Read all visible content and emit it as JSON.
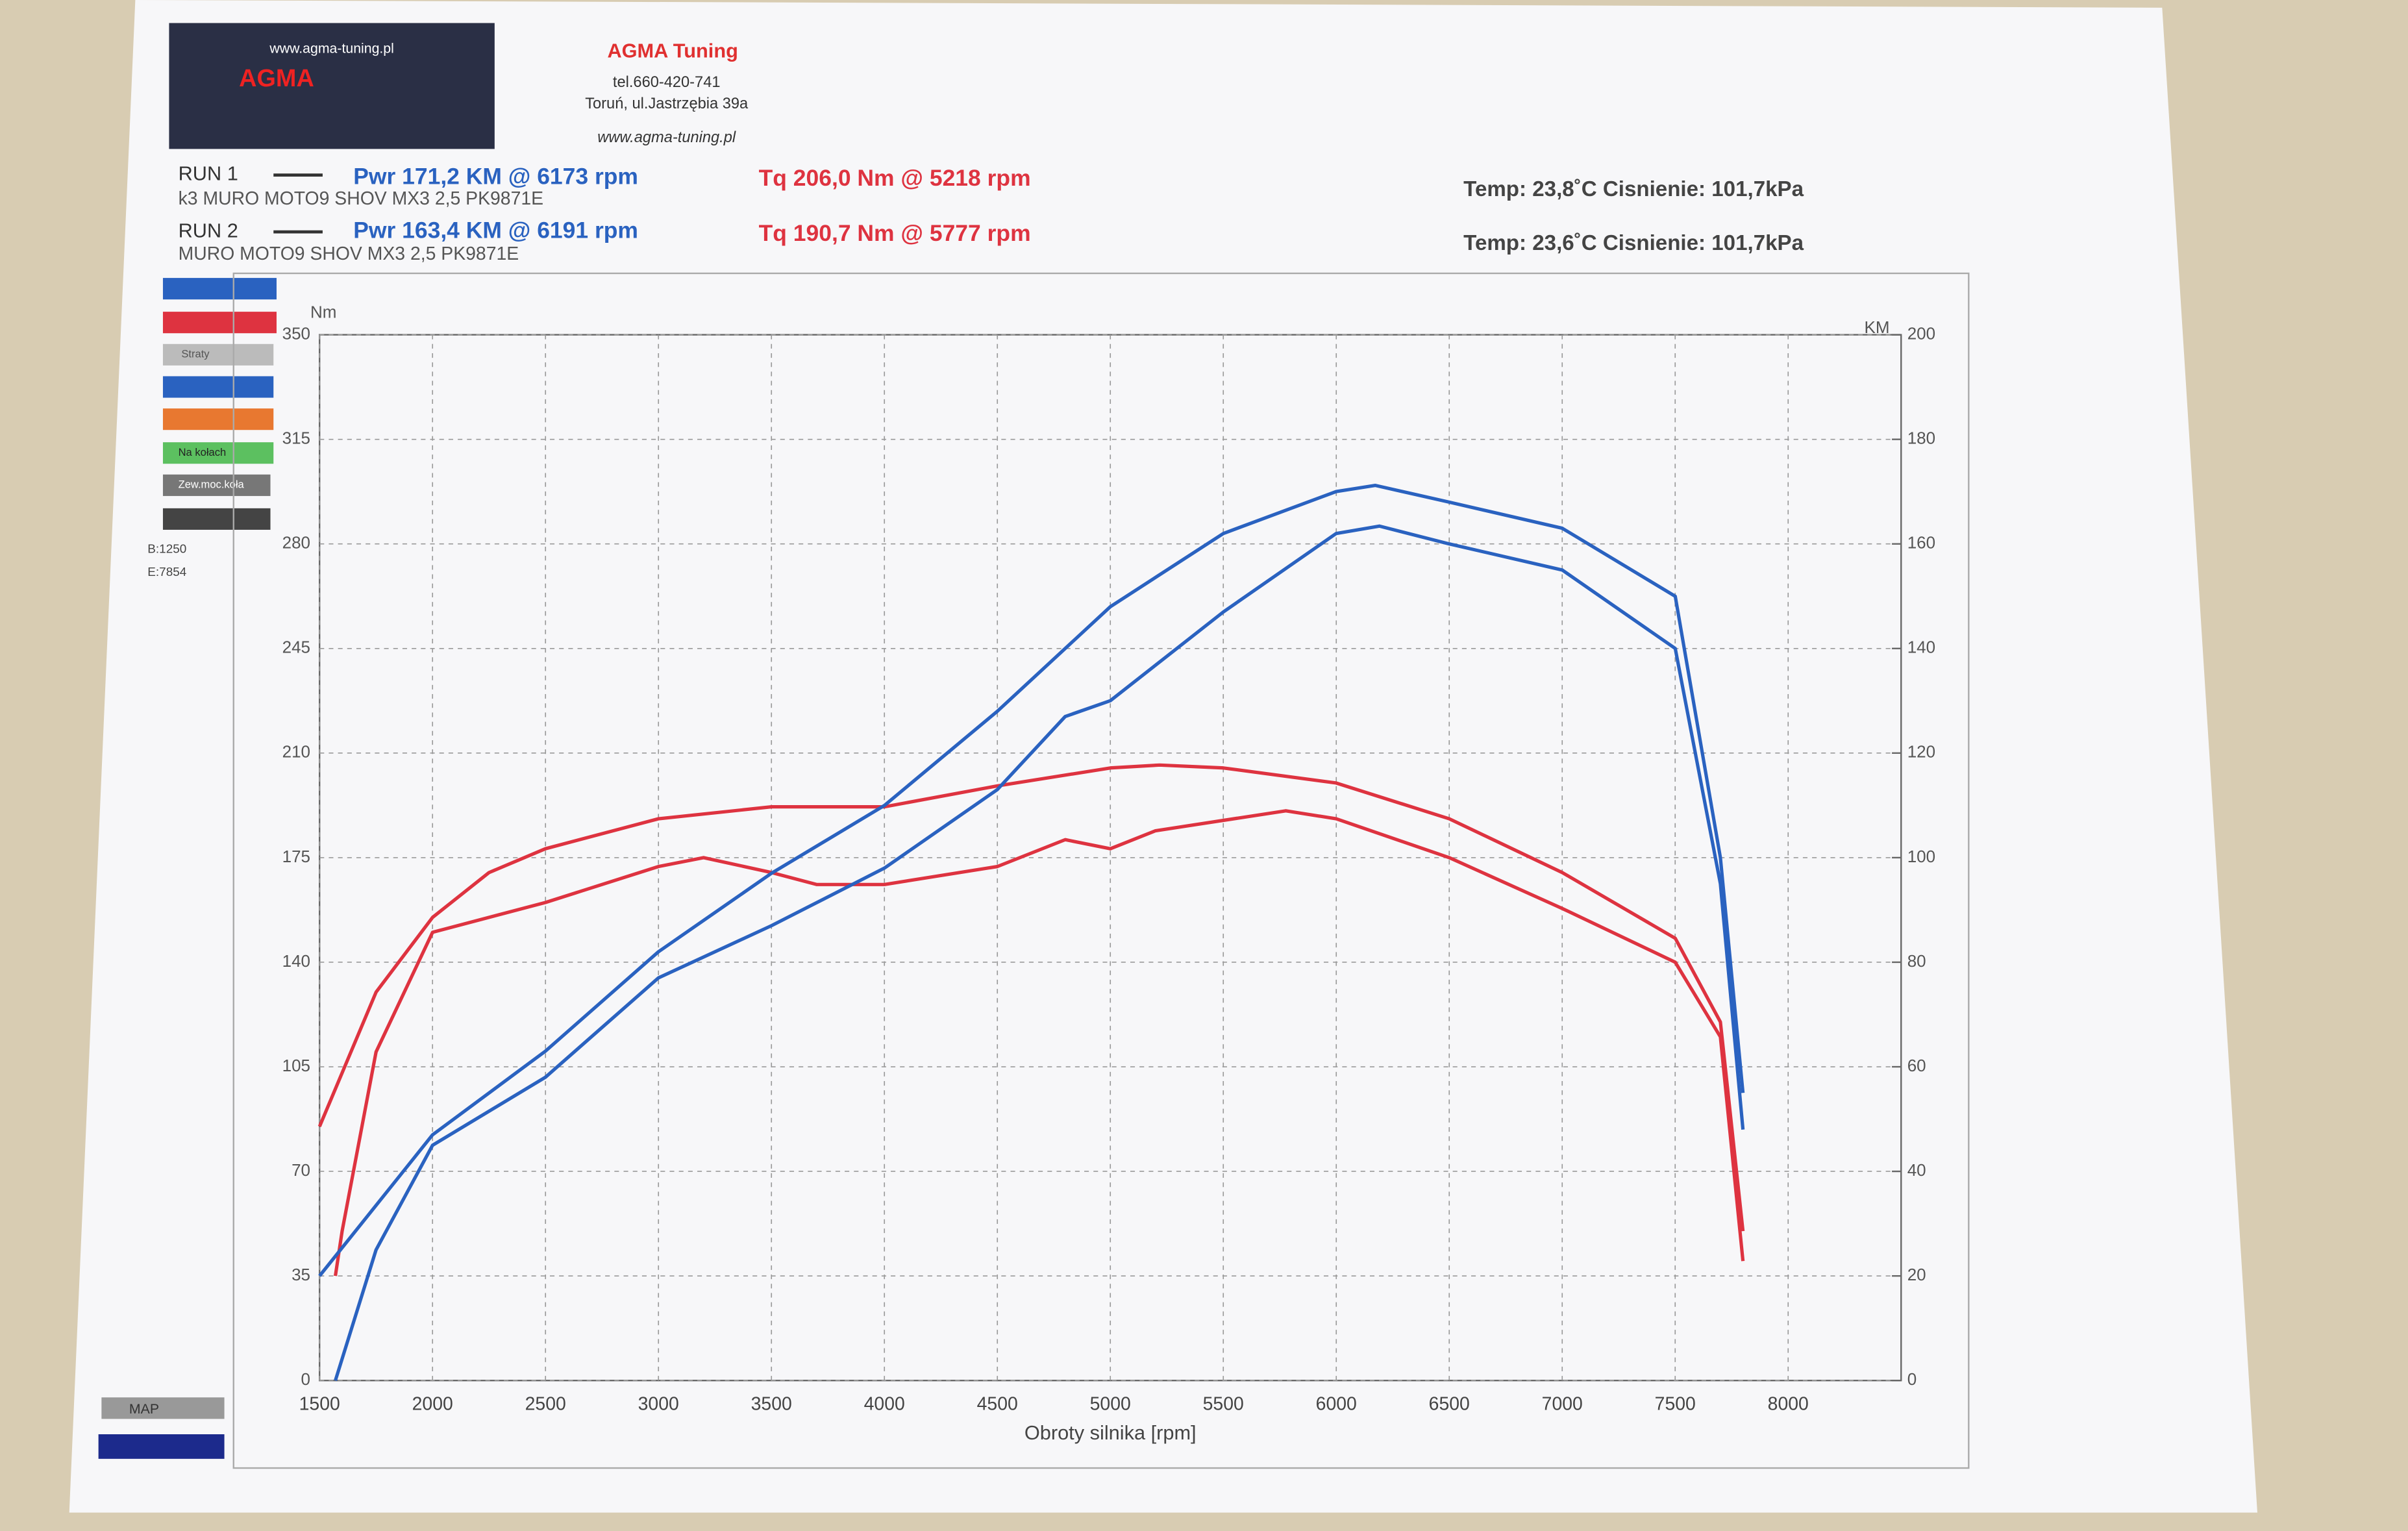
{
  "header": {
    "logo_url": "www.agma-tuning.pl",
    "logo_text": "AGMA",
    "company": "AGMA Tuning",
    "phone": "tel.660-420-741",
    "address": "Toruń, ul.Jastrzębia 39a",
    "website": "www.agma-tuning.pl"
  },
  "runs": [
    {
      "label": "RUN 1",
      "power": "Pwr  171,2 KM @ 6173 rpm",
      "torque": "Tq 206,0 Nm @ 5218 rpm",
      "vehicle": "k3 MURO MOTO9 SHOV MX3 2,5 PK9871E",
      "conditions": "Temp: 23,8˚C   Cisnienie: 101,7kPa"
    },
    {
      "label": "RUN 2",
      "power": "Pwr  163,4 KM @ 6191 rpm",
      "torque": "Tq 190,7 Nm @ 5777 rpm",
      "vehicle": "MURO MOTO9 SHOV MX3 2,5 PK9871E",
      "conditions": "Temp: 23,6˚C   Cisnienie: 101,7kPa"
    }
  ],
  "side_panel": {
    "items": [
      "Straty",
      "Na kołach",
      "Zew.moc.koła"
    ],
    "begin": "B:1250",
    "end": "E:7854",
    "map": "MAP"
  },
  "chart_data": {
    "type": "line",
    "xlabel": "Obroty silnika [rpm]",
    "ylabel": "Nm",
    "y2label": "KM",
    "xlim": [
      1500,
      8500
    ],
    "xticks": [
      1500,
      2000,
      2500,
      3000,
      3500,
      4000,
      4500,
      5000,
      5500,
      6000,
      6500,
      7000,
      7500,
      8000
    ],
    "ylim": [
      0,
      350
    ],
    "yticks": [
      0,
      35,
      70,
      105,
      140,
      175,
      210,
      245,
      280,
      315,
      350
    ],
    "y2lim": [
      0,
      200
    ],
    "y2ticks": [
      0,
      20,
      40,
      60,
      80,
      100,
      120,
      140,
      160,
      180,
      200
    ],
    "grid": true,
    "series": [
      {
        "color": "#de3340",
        "x": [
          1500,
          1750,
          2000,
          2250,
          2500,
          3000,
          3500,
          4000,
          4500,
          5000,
          5218,
          5500,
          6000,
          6500,
          7000,
          7500,
          7700,
          7800
        ],
        "values": [
          85,
          130,
          155,
          170,
          178,
          188,
          192,
          192,
          199,
          205,
          206,
          205,
          200,
          188,
          170,
          148,
          120,
          50
        ]
      },
      {
        "color": "#de3340",
        "x": [
          1570,
          1600,
          1750,
          2000,
          2500,
          3000,
          3200,
          3500,
          3700,
          4000,
          4500,
          4800,
          5000,
          5200,
          5777,
          6000,
          6500,
          7000,
          7500,
          7700,
          7800
        ],
        "values": [
          35,
          50,
          110,
          150,
          160,
          172,
          175,
          170,
          166,
          166,
          172,
          181,
          178,
          184,
          190.7,
          188,
          175,
          158,
          140,
          115,
          40
        ]
      },
      {
        "color": "#2a62c0",
        "axis": "y2",
        "x": [
          1500,
          2000,
          2500,
          3000,
          3500,
          4000,
          4500,
          5000,
          5500,
          6000,
          6173,
          6500,
          7000,
          7500,
          7700,
          7800
        ],
        "values": [
          20,
          47,
          63,
          82,
          97,
          110,
          128,
          148,
          162,
          170,
          171.2,
          168,
          163,
          150,
          100,
          55
        ]
      },
      {
        "color": "#2a62c0",
        "axis": "y2",
        "x": [
          1570,
          1750,
          2000,
          2500,
          3000,
          3500,
          4000,
          4500,
          4800,
          5000,
          5500,
          6000,
          6191,
          6500,
          7000,
          7500,
          7700,
          7800
        ],
        "values": [
          0,
          25,
          45,
          58,
          77,
          87,
          98,
          113,
          127,
          130,
          147,
          162,
          163.4,
          160,
          155,
          140,
          95,
          48
        ]
      }
    ]
  }
}
